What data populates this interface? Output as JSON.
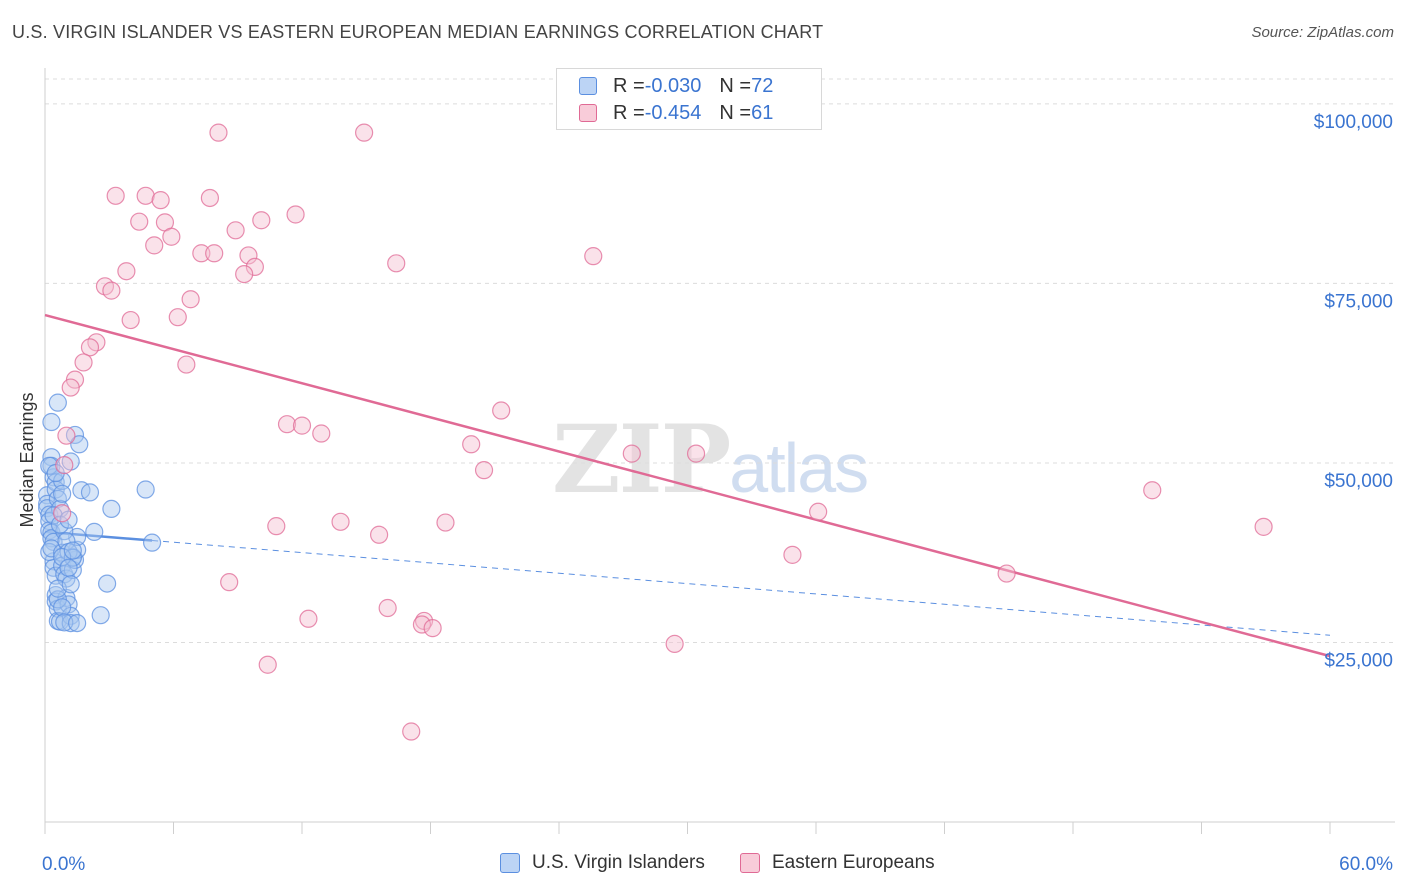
{
  "header": {
    "title": "U.S. VIRGIN ISLANDER VS EASTERN EUROPEAN MEDIAN EARNINGS CORRELATION CHART",
    "source": "Source: ZipAtlas.com"
  },
  "legend_top": {
    "rows": [
      {
        "r_label": "R = ",
        "r_value": "-0.030",
        "n_label": "N = ",
        "n_value": "72"
      },
      {
        "r_label": "R = ",
        "r_value": "-0.454",
        "n_label": "N = ",
        "n_value": "61"
      }
    ]
  },
  "watermark": {
    "zip": "ZIP",
    "atlas": "atlas"
  },
  "chart_data": {
    "type": "scatter",
    "title": "U.S. VIRGIN ISLANDER VS EASTERN EUROPEAN MEDIAN EARNINGS CORRELATION CHART",
    "xlabel": "",
    "ylabel": "Median Earnings",
    "xlim": [
      0,
      60
    ],
    "ylim": [
      0,
      105000
    ],
    "x_tick_labels": {
      "min": "0.0%",
      "max": "60.0%"
    },
    "y_ticks": [
      {
        "value": 25000,
        "label": "$25,000"
      },
      {
        "value": 50000,
        "label": "$50,000"
      },
      {
        "value": 75000,
        "label": "$75,000"
      },
      {
        "value": 100000,
        "label": "$100,000"
      }
    ],
    "grid": true,
    "legend_position": "bottom",
    "series": [
      {
        "name": "U.S. Virgin Islanders",
        "color": "#5b8fe0",
        "fill": "#a9c7f0",
        "R": -0.03,
        "N": 72,
        "trend": {
          "x0": 0,
          "y0": 40400,
          "x1": 60,
          "y1": 26000,
          "solid_until": 5
        },
        "points": [
          [
            0.1,
            45500
          ],
          [
            0.1,
            44300
          ],
          [
            0.1,
            43700
          ],
          [
            0.2,
            42800
          ],
          [
            0.2,
            41900
          ],
          [
            0.2,
            40600
          ],
          [
            0.3,
            40300
          ],
          [
            0.3,
            39500
          ],
          [
            0.4,
            39000
          ],
          [
            0.4,
            36300
          ],
          [
            0.4,
            35400
          ],
          [
            0.5,
            34300
          ],
          [
            0.5,
            31600
          ],
          [
            0.5,
            30700
          ],
          [
            0.6,
            29700
          ],
          [
            0.6,
            28000
          ],
          [
            0.7,
            27900
          ],
          [
            0.2,
            37600
          ],
          [
            0.3,
            38100
          ],
          [
            0.8,
            37500
          ],
          [
            0.8,
            35700
          ],
          [
            0.9,
            34500
          ],
          [
            1.0,
            33900
          ],
          [
            1.0,
            31200
          ],
          [
            1.1,
            30300
          ],
          [
            1.2,
            28700
          ],
          [
            1.2,
            27700
          ],
          [
            1.3,
            36900
          ],
          [
            1.3,
            35100
          ],
          [
            1.4,
            36500
          ],
          [
            1.5,
            37900
          ],
          [
            1.5,
            39700
          ],
          [
            0.3,
            50800
          ],
          [
            0.3,
            49600
          ],
          [
            0.4,
            48000
          ],
          [
            0.5,
            47300
          ],
          [
            0.5,
            46300
          ],
          [
            0.6,
            45000
          ],
          [
            0.7,
            43600
          ],
          [
            0.3,
            55700
          ],
          [
            0.6,
            58400
          ],
          [
            0.8,
            47500
          ],
          [
            1.2,
            50200
          ],
          [
            1.4,
            53900
          ],
          [
            1.6,
            52600
          ],
          [
            1.7,
            46200
          ],
          [
            2.1,
            45900
          ],
          [
            2.3,
            40400
          ],
          [
            2.6,
            28800
          ],
          [
            2.9,
            33200
          ],
          [
            3.1,
            43600
          ],
          [
            4.7,
            46300
          ],
          [
            5.0,
            38900
          ],
          [
            0.9,
            40500
          ],
          [
            1.0,
            39100
          ],
          [
            1.1,
            37600
          ],
          [
            1.3,
            36800
          ],
          [
            0.4,
            42700
          ],
          [
            0.7,
            41400
          ],
          [
            0.8,
            36900
          ],
          [
            0.6,
            31000
          ],
          [
            0.8,
            29900
          ],
          [
            0.9,
            27800
          ],
          [
            1.1,
            35400
          ],
          [
            1.3,
            37800
          ],
          [
            1.5,
            27700
          ],
          [
            0.2,
            49600
          ],
          [
            0.5,
            48600
          ],
          [
            0.8,
            45700
          ],
          [
            1.1,
            42100
          ],
          [
            0.6,
            32500
          ],
          [
            1.2,
            33100
          ]
        ]
      },
      {
        "name": "Eastern Europeans",
        "color": "#e06a95",
        "fill": "#f5bfd0",
        "R": -0.454,
        "N": 61,
        "trend": {
          "x0": 0,
          "y0": 70600,
          "x1": 60,
          "y1": 23100
        },
        "points": [
          [
            8.1,
            96000
          ],
          [
            14.9,
            96000
          ],
          [
            3.3,
            87200
          ],
          [
            4.7,
            87200
          ],
          [
            5.4,
            86600
          ],
          [
            7.7,
            86900
          ],
          [
            5.6,
            83500
          ],
          [
            10.1,
            83800
          ],
          [
            11.7,
            84600
          ],
          [
            4.4,
            83600
          ],
          [
            8.9,
            82400
          ],
          [
            5.9,
            81500
          ],
          [
            5.1,
            80300
          ],
          [
            7.3,
            79200
          ],
          [
            7.9,
            79200
          ],
          [
            9.5,
            78900
          ],
          [
            25.6,
            78800
          ],
          [
            16.4,
            77800
          ],
          [
            9.8,
            77300
          ],
          [
            9.3,
            76300
          ],
          [
            3.8,
            76700
          ],
          [
            2.8,
            74600
          ],
          [
            3.1,
            74000
          ],
          [
            6.8,
            72800
          ],
          [
            6.2,
            70300
          ],
          [
            4.0,
            69900
          ],
          [
            2.4,
            66800
          ],
          [
            2.1,
            66100
          ],
          [
            6.6,
            63700
          ],
          [
            1.8,
            64000
          ],
          [
            1.4,
            61600
          ],
          [
            1.2,
            60500
          ],
          [
            21.3,
            57300
          ],
          [
            11.3,
            55400
          ],
          [
            12.0,
            55200
          ],
          [
            12.9,
            54100
          ],
          [
            1.0,
            53800
          ],
          [
            19.9,
            52600
          ],
          [
            27.4,
            51300
          ],
          [
            30.4,
            51300
          ],
          [
            20.5,
            49000
          ],
          [
            0.9,
            49700
          ],
          [
            51.7,
            46200
          ],
          [
            0.8,
            43000
          ],
          [
            36.1,
            43200
          ],
          [
            13.8,
            41800
          ],
          [
            18.7,
            41700
          ],
          [
            10.8,
            41200
          ],
          [
            56.9,
            41100
          ],
          [
            15.6,
            40000
          ],
          [
            34.9,
            37200
          ],
          [
            44.9,
            34600
          ],
          [
            8.6,
            33400
          ],
          [
            16.0,
            29800
          ],
          [
            12.3,
            28300
          ],
          [
            17.7,
            28000
          ],
          [
            17.6,
            27500
          ],
          [
            18.1,
            27000
          ],
          [
            29.4,
            24800
          ],
          [
            10.4,
            21900
          ],
          [
            17.1,
            12600
          ]
        ]
      }
    ]
  }
}
